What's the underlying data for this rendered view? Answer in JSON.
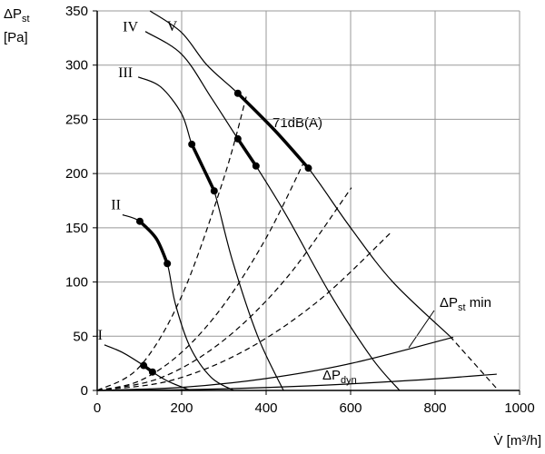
{
  "chart_data": {
    "type": "line",
    "y_label": {
      "main": "ΔP",
      "sub": "st",
      "unit": "[Pa]"
    },
    "x_label": "V̇ [m³/h]",
    "xlim": [
      0,
      1000
    ],
    "xticks": [
      0,
      200,
      400,
      600,
      800,
      1000
    ],
    "ylim": [
      0,
      350
    ],
    "yticks": [
      0,
      50,
      100,
      150,
      200,
      250,
      300,
      350
    ],
    "grid": true,
    "series": [
      {
        "name": "I",
        "color": "#000000",
        "x": [
          17,
          60,
          110,
          131,
          170,
          222
        ],
        "values": [
          42,
          35,
          23,
          17,
          8,
          0
        ],
        "dots": {
          "x": [
            110,
            131
          ],
          "values": [
            23,
            17
          ]
        }
      },
      {
        "name": "II",
        "color": "#000000",
        "x": [
          60,
          101,
          140,
          166,
          185,
          220,
          270,
          323
        ],
        "values": [
          162,
          156,
          140,
          117,
          80,
          40,
          12,
          0
        ],
        "dots": {
          "x": [
            101,
            166
          ],
          "values": [
            156,
            117
          ]
        }
      },
      {
        "name": "III",
        "color": "#000000",
        "x": [
          97,
          150,
          200,
          224,
          250,
          277,
          320,
          380,
          441
        ],
        "values": [
          289,
          280,
          255,
          227,
          206,
          184,
          120,
          50,
          0
        ],
        "dots": {
          "x": [
            224,
            277
          ],
          "values": [
            227,
            184
          ]
        }
      },
      {
        "name": "IV",
        "color": "#000000",
        "x": [
          114,
          200,
          270,
          333,
          376,
          450,
          550,
          650,
          716
        ],
        "values": [
          331,
          310,
          270,
          232,
          207,
          160,
          90,
          30,
          0
        ],
        "dots": {
          "x": [
            333,
            376
          ],
          "values": [
            232,
            207
          ]
        }
      },
      {
        "name": "V",
        "color": "#000000",
        "x": [
          125,
          200,
          260,
          333,
          420,
          500,
          600,
          700,
          835
        ],
        "values": [
          350,
          330,
          300,
          274,
          240,
          205,
          150,
          100,
          50
        ],
        "dots": {
          "x": [
            333,
            500
          ],
          "values": [
            274,
            205
          ]
        }
      },
      {
        "color": "#000000",
        "dashed": true,
        "x": [
          835,
          950
        ],
        "values": [
          50,
          0
        ]
      },
      {
        "color": "#000000",
        "dashed": true,
        "x": [
          0,
          100,
          200,
          300,
          355
        ],
        "values": [
          0,
          21.7,
          87,
          196,
          274
        ]
      },
      {
        "color": "#000000",
        "dashed": true,
        "x": [
          0,
          100,
          200,
          300,
          400,
          490
        ],
        "values": [
          0,
          8.8,
          35.2,
          79.1,
          140.6,
          211
        ]
      },
      {
        "color": "#000000",
        "dashed": true,
        "x": [
          0,
          150,
          300,
          450,
          602
        ],
        "values": [
          0,
          11.6,
          46.4,
          104.5,
          187
        ]
      },
      {
        "color": "#000000",
        "dashed": true,
        "x": [
          0,
          175,
          350,
          525,
          699
        ],
        "values": [
          0,
          9.2,
          36.9,
          83,
          147
        ]
      },
      {
        "color": "#000000",
        "x": [
          0,
          200,
          400,
          600,
          843
        ],
        "values": [
          0,
          2.8,
          11,
          24.8,
          49
        ]
      },
      {
        "color": "#000000",
        "x": [
          0,
          250,
          500,
          750,
          946
        ],
        "values": [
          0,
          1.05,
          4.2,
          9.4,
          15
        ]
      }
    ],
    "annotations": [
      {
        "text": "71dB(A)"
      },
      {
        "main": "ΔP",
        "sub": "st",
        "rest": " min"
      },
      {
        "main": "ΔP",
        "sub": "dyn"
      }
    ]
  }
}
